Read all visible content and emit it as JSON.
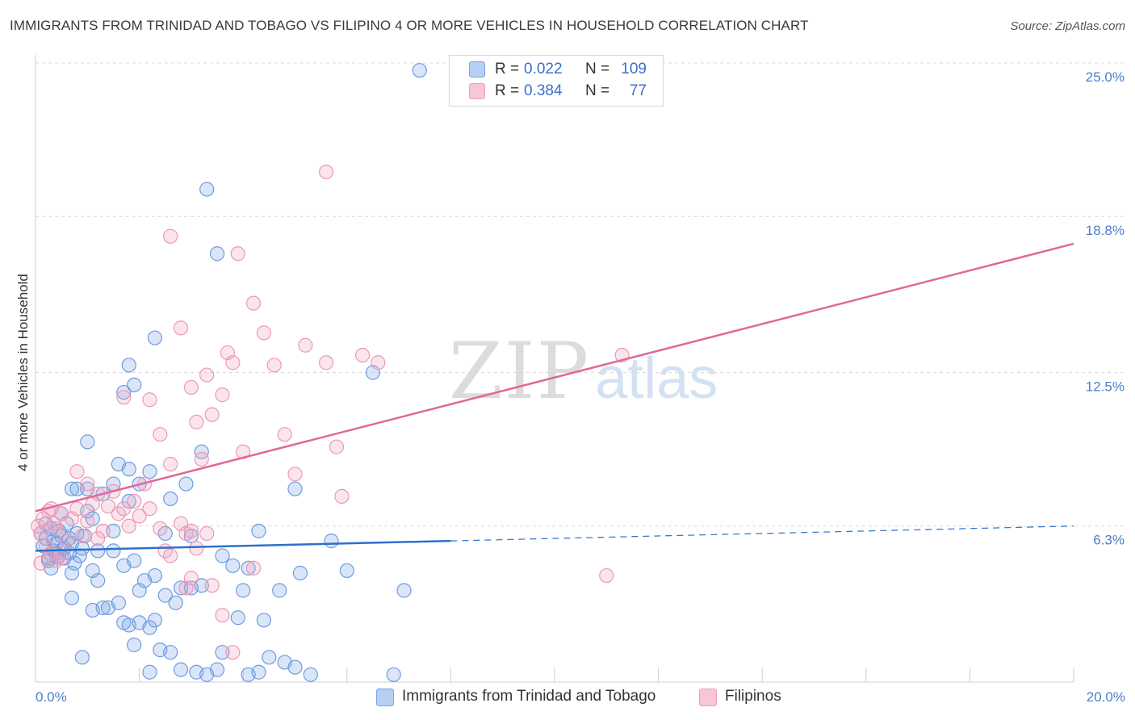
{
  "title": "IMMIGRANTS FROM TRINIDAD AND TOBAGO VS FILIPINO 4 OR MORE VEHICLES IN HOUSEHOLD CORRELATION CHART",
  "source": "Source: ZipAtlas.com",
  "watermark": {
    "zip": "ZIP",
    "atlas": "atlas"
  },
  "legend_top": {
    "rows": [
      {
        "r_label": "R =",
        "r_value": "0.022",
        "n_label": "N =",
        "n_value": "109"
      },
      {
        "r_label": "R =",
        "r_value": "0.384",
        "n_label": "N =",
        "n_value": "77"
      }
    ]
  },
  "chart_data": {
    "type": "scatter",
    "title": "IMMIGRANTS FROM TRINIDAD AND TOBAGO VS FILIPINO 4 OR MORE VEHICLES IN HOUSEHOLD CORRELATION CHART",
    "xlabel": "",
    "ylabel": "4 or more Vehicles in Household",
    "xlim": [
      0,
      20
    ],
    "ylim": [
      0,
      25
    ],
    "x_tick_labels": [
      "0.0%",
      "20.0%"
    ],
    "y_ticks": [
      6.3,
      12.5,
      18.8,
      25.0
    ],
    "y_tick_labels": [
      "6.3%",
      "12.5%",
      "18.8%",
      "25.0%"
    ],
    "grid": true,
    "legend_position": "bottom-center",
    "colors": {
      "blue": "#7aa6e6",
      "blue_line": "#2d6fcf",
      "pink": "#f0a0ba",
      "pink_line": "#e0689a"
    },
    "series": [
      {
        "name": "Immigrants from Trinidad and Tobago",
        "color": "#7aa6e6",
        "r": 0.022,
        "n": 109,
        "trend": {
          "x": [
            0,
            8.0
          ],
          "y": [
            5.3,
            5.7
          ],
          "dash_to": [
            20,
            6.3
          ]
        },
        "points": [
          [
            0.1,
            6.0
          ],
          [
            0.15,
            5.5
          ],
          [
            0.2,
            5.8
          ],
          [
            0.25,
            5.0
          ],
          [
            0.3,
            6.2
          ],
          [
            0.35,
            5.3
          ],
          [
            0.4,
            5.6
          ],
          [
            0.45,
            5.1
          ],
          [
            0.5,
            5.9
          ],
          [
            0.55,
            5.4
          ],
          [
            0.6,
            6.4
          ],
          [
            0.65,
            5.2
          ],
          [
            0.2,
            6.4
          ],
          [
            0.3,
            4.6
          ],
          [
            0.4,
            5.2
          ],
          [
            0.5,
            6.8
          ],
          [
            0.7,
            5.6
          ],
          [
            0.8,
            6.0
          ],
          [
            0.9,
            5.4
          ],
          [
            1.0,
            6.9
          ],
          [
            0.25,
            4.9
          ],
          [
            0.35,
            5.7
          ],
          [
            0.45,
            6.1
          ],
          [
            0.55,
            5.0
          ],
          [
            0.65,
            5.8
          ],
          [
            0.75,
            4.8
          ],
          [
            0.85,
            5.1
          ],
          [
            0.95,
            5.9
          ],
          [
            1.1,
            6.6
          ],
          [
            1.2,
            5.3
          ],
          [
            0.7,
            7.8
          ],
          [
            0.8,
            7.8
          ],
          [
            1.0,
            7.8
          ],
          [
            1.3,
            7.6
          ],
          [
            1.5,
            8.0
          ],
          [
            1.6,
            8.8
          ],
          [
            1.8,
            7.3
          ],
          [
            2.0,
            8.0
          ],
          [
            2.2,
            8.5
          ],
          [
            2.6,
            7.4
          ],
          [
            0.7,
            4.4
          ],
          [
            1.1,
            4.5
          ],
          [
            1.5,
            5.3
          ],
          [
            1.7,
            4.7
          ],
          [
            2.0,
            3.7
          ],
          [
            2.3,
            4.3
          ],
          [
            2.5,
            3.5
          ],
          [
            2.8,
            3.8
          ],
          [
            3.0,
            3.8
          ],
          [
            3.2,
            3.9
          ],
          [
            0.7,
            3.4
          ],
          [
            1.1,
            2.9
          ],
          [
            1.3,
            3.0
          ],
          [
            1.4,
            3.0
          ],
          [
            1.6,
            3.2
          ],
          [
            1.7,
            2.4
          ],
          [
            1.8,
            2.3
          ],
          [
            1.9,
            1.5
          ],
          [
            2.0,
            2.4
          ],
          [
            2.2,
            2.2
          ],
          [
            2.3,
            2.5
          ],
          [
            2.4,
            1.3
          ],
          [
            2.6,
            1.2
          ],
          [
            2.8,
            0.5
          ],
          [
            3.1,
            0.4
          ],
          [
            3.3,
            0.3
          ],
          [
            3.5,
            0.5
          ],
          [
            3.6,
            1.2
          ],
          [
            4.1,
            0.3
          ],
          [
            4.3,
            0.4
          ],
          [
            4.5,
            1.0
          ],
          [
            5.0,
            0.6
          ],
          [
            5.3,
            0.3
          ],
          [
            6.0,
            4.5
          ],
          [
            6.5,
            12.5
          ],
          [
            1.0,
            9.7
          ],
          [
            1.8,
            8.6
          ],
          [
            1.7,
            11.7
          ],
          [
            1.8,
            12.8
          ],
          [
            1.9,
            12.0
          ],
          [
            2.3,
            13.9
          ],
          [
            2.9,
            8.0
          ],
          [
            3.2,
            9.3
          ],
          [
            4.0,
            3.7
          ],
          [
            3.6,
            5.1
          ],
          [
            4.1,
            4.6
          ],
          [
            4.3,
            6.1
          ],
          [
            4.4,
            2.5
          ],
          [
            4.7,
            3.7
          ],
          [
            5.0,
            7.8
          ],
          [
            5.1,
            4.4
          ],
          [
            3.5,
            17.3
          ],
          [
            3.3,
            19.9
          ],
          [
            7.4,
            24.7
          ],
          [
            5.7,
            5.7
          ],
          [
            6.9,
            0.3
          ],
          [
            7.1,
            3.7
          ],
          [
            1.2,
            4.1
          ],
          [
            1.5,
            6.1
          ],
          [
            2.5,
            6.0
          ],
          [
            3.0,
            5.9
          ],
          [
            3.8,
            4.7
          ],
          [
            1.9,
            4.9
          ],
          [
            2.1,
            4.1
          ],
          [
            2.7,
            3.2
          ],
          [
            0.9,
            1.0
          ],
          [
            3.9,
            2.6
          ],
          [
            2.2,
            0.4
          ],
          [
            4.8,
            0.8
          ]
        ]
      },
      {
        "name": "Filipinos",
        "color": "#f0a0ba",
        "r": 0.384,
        "n": 77,
        "trend": {
          "x": [
            0,
            20
          ],
          "y": [
            6.9,
            17.7
          ]
        },
        "points": [
          [
            0.05,
            6.3
          ],
          [
            0.1,
            6.0
          ],
          [
            0.15,
            6.6
          ],
          [
            0.2,
            5.5
          ],
          [
            0.25,
            6.9
          ],
          [
            0.3,
            7.0
          ],
          [
            0.35,
            6.4
          ],
          [
            0.4,
            6.2
          ],
          [
            0.5,
            6.8
          ],
          [
            0.6,
            5.7
          ],
          [
            0.7,
            6.6
          ],
          [
            0.8,
            7.0
          ],
          [
            0.9,
            5.9
          ],
          [
            1.0,
            6.5
          ],
          [
            1.1,
            7.2
          ],
          [
            1.2,
            5.8
          ],
          [
            1.3,
            6.1
          ],
          [
            0.1,
            4.8
          ],
          [
            0.3,
            5.2
          ],
          [
            0.5,
            5.0
          ],
          [
            0.8,
            8.5
          ],
          [
            1.0,
            8.0
          ],
          [
            1.2,
            7.6
          ],
          [
            1.4,
            7.1
          ],
          [
            1.5,
            7.7
          ],
          [
            1.6,
            6.8
          ],
          [
            1.7,
            7.0
          ],
          [
            1.8,
            6.3
          ],
          [
            1.9,
            7.3
          ],
          [
            2.0,
            6.7
          ],
          [
            2.1,
            8.0
          ],
          [
            2.2,
            7.0
          ],
          [
            2.4,
            6.2
          ],
          [
            2.5,
            5.3
          ],
          [
            2.6,
            5.1
          ],
          [
            2.8,
            6.4
          ],
          [
            2.9,
            6.0
          ],
          [
            3.0,
            6.1
          ],
          [
            3.1,
            5.4
          ],
          [
            3.3,
            6.0
          ],
          [
            1.7,
            11.5
          ],
          [
            2.2,
            11.4
          ],
          [
            2.4,
            10.0
          ],
          [
            2.6,
            8.8
          ],
          [
            2.8,
            14.3
          ],
          [
            3.0,
            11.9
          ],
          [
            3.1,
            10.5
          ],
          [
            3.2,
            9.0
          ],
          [
            3.3,
            12.4
          ],
          [
            3.4,
            10.8
          ],
          [
            3.6,
            11.6
          ],
          [
            3.7,
            13.3
          ],
          [
            3.8,
            12.9
          ],
          [
            4.0,
            9.3
          ],
          [
            4.2,
            15.3
          ],
          [
            4.4,
            14.1
          ],
          [
            4.6,
            12.8
          ],
          [
            4.8,
            10.0
          ],
          [
            5.0,
            8.4
          ],
          [
            5.2,
            13.6
          ],
          [
            5.6,
            12.9
          ],
          [
            5.8,
            9.5
          ],
          [
            5.9,
            7.5
          ],
          [
            6.3,
            13.2
          ],
          [
            6.6,
            12.9
          ],
          [
            2.6,
            18.0
          ],
          [
            3.9,
            17.3
          ],
          [
            5.6,
            20.6
          ],
          [
            11.3,
            13.2
          ],
          [
            11.0,
            4.3
          ],
          [
            3.0,
            4.2
          ],
          [
            2.9,
            3.8
          ],
          [
            3.4,
            3.9
          ],
          [
            3.6,
            2.7
          ],
          [
            3.8,
            1.2
          ],
          [
            4.2,
            4.6
          ],
          [
            0.4,
            4.9
          ]
        ]
      }
    ]
  }
}
